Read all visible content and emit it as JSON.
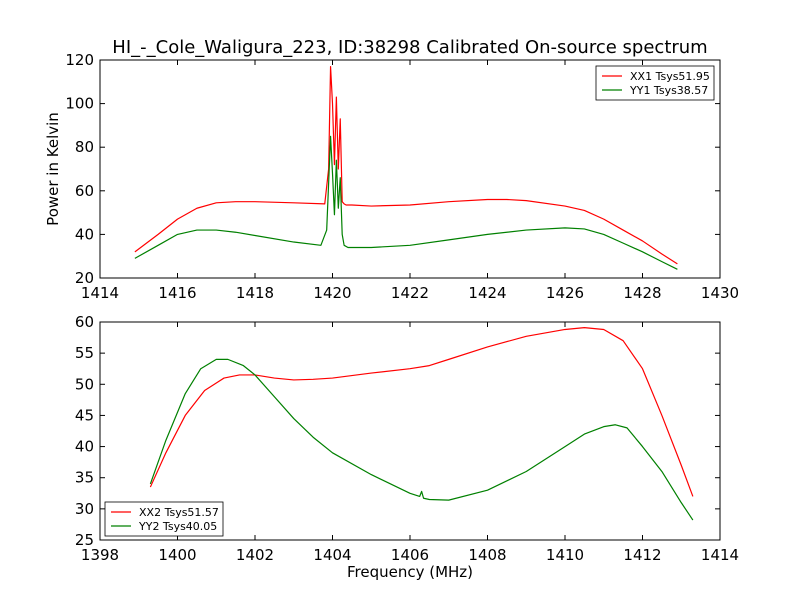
{
  "title": "HI_-_Cole_Waligura_223, ID:38298 Calibrated On-source spectrum",
  "colors": {
    "xx": "#ff0000",
    "yy": "#008000"
  },
  "chart_data": [
    {
      "type": "line",
      "title": "HI_-_Cole_Waligura_223, ID:38298 Calibrated On-source spectrum",
      "xlabel": "",
      "ylabel": "Power in Kelvin",
      "xlim": [
        1414,
        1430
      ],
      "ylim": [
        20,
        120
      ],
      "xticks": [
        1414,
        1416,
        1418,
        1420,
        1422,
        1424,
        1426,
        1428,
        1430
      ],
      "yticks": [
        20,
        40,
        60,
        80,
        100,
        120
      ],
      "legend_position": "top-right",
      "series": [
        {
          "name": "XX1 Tsys51.95",
          "color": "#ff0000",
          "x": [
            1414.9,
            1415.5,
            1416.0,
            1416.5,
            1417.0,
            1417.5,
            1418.0,
            1419.0,
            1419.8,
            1419.9,
            1419.95,
            1420.0,
            1420.05,
            1420.1,
            1420.15,
            1420.2,
            1420.25,
            1420.3,
            1420.35,
            1420.5,
            1421.0,
            1422.0,
            1423.0,
            1424.0,
            1424.5,
            1425.0,
            1426.0,
            1426.5,
            1427.0,
            1427.5,
            1428.0,
            1428.5,
            1428.9
          ],
          "y": [
            32,
            40,
            47,
            52,
            54.5,
            55,
            55,
            54.5,
            54,
            70,
            117,
            100,
            72,
            103,
            70,
            93,
            55,
            54,
            53.5,
            53.5,
            53,
            53.5,
            55,
            56,
            56,
            55.5,
            53,
            51,
            47,
            42,
            37,
            31,
            26.5
          ]
        },
        {
          "name": "YY1 Tsys38.57",
          "color": "#008000",
          "x": [
            1414.9,
            1415.5,
            1416.0,
            1416.5,
            1417.0,
            1417.5,
            1418.0,
            1419.0,
            1419.7,
            1419.85,
            1419.95,
            1420.0,
            1420.05,
            1420.1,
            1420.15,
            1420.2,
            1420.25,
            1420.3,
            1420.4,
            1421.0,
            1422.0,
            1423.0,
            1424.0,
            1425.0,
            1426.0,
            1426.5,
            1427.0,
            1427.5,
            1428.0,
            1428.5,
            1428.9
          ],
          "y": [
            29,
            35,
            40,
            42,
            42,
            41,
            39.5,
            36.5,
            35,
            42,
            85,
            68,
            49,
            74,
            52,
            66,
            40,
            35,
            34,
            34,
            35,
            37.5,
            40,
            42,
            43,
            42.5,
            40,
            36,
            32,
            27.5,
            24
          ]
        }
      ]
    },
    {
      "type": "line",
      "title": "",
      "xlabel": "Frequency (MHz)",
      "ylabel": "",
      "xlim": [
        1398,
        1414
      ],
      "ylim": [
        25,
        60
      ],
      "xticks": [
        1398,
        1400,
        1402,
        1404,
        1406,
        1408,
        1410,
        1412,
        1414
      ],
      "yticks": [
        25,
        30,
        35,
        40,
        45,
        50,
        55,
        60
      ],
      "legend_position": "bottom-left",
      "series": [
        {
          "name": "XX2 Tsys51.57",
          "color": "#ff0000",
          "x": [
            1399.3,
            1399.7,
            1400.2,
            1400.7,
            1401.2,
            1401.6,
            1402.0,
            1402.5,
            1403.0,
            1403.5,
            1404.0,
            1405.0,
            1406.0,
            1406.5,
            1407.0,
            1408.0,
            1409.0,
            1410.0,
            1410.5,
            1411.0,
            1411.5,
            1412.0,
            1412.5,
            1413.0,
            1413.3
          ],
          "y": [
            33.5,
            39,
            45,
            49,
            51,
            51.5,
            51.5,
            51,
            50.7,
            50.8,
            51,
            51.8,
            52.5,
            53,
            54,
            56,
            57.7,
            58.8,
            59.1,
            58.8,
            57,
            52.5,
            45,
            37,
            32
          ]
        },
        {
          "name": "YY2 Tsys40.05",
          "color": "#008000",
          "x": [
            1399.3,
            1399.7,
            1400.2,
            1400.6,
            1401.0,
            1401.3,
            1401.7,
            1402.0,
            1402.5,
            1403.0,
            1403.5,
            1404.0,
            1405.0,
            1406.0,
            1406.25,
            1406.3,
            1406.35,
            1406.5,
            1407.0,
            1408.0,
            1409.0,
            1410.0,
            1410.5,
            1411.0,
            1411.3,
            1411.6,
            1412.0,
            1412.5,
            1413.0,
            1413.3
          ],
          "y": [
            34,
            41,
            48.5,
            52.5,
            54,
            54,
            53,
            51.5,
            48,
            44.5,
            41.5,
            39,
            35.5,
            32.5,
            32,
            32.8,
            31.7,
            31.5,
            31.4,
            33,
            36,
            40,
            42,
            43.2,
            43.5,
            43,
            40,
            36,
            31,
            28.2
          ]
        }
      ]
    }
  ]
}
